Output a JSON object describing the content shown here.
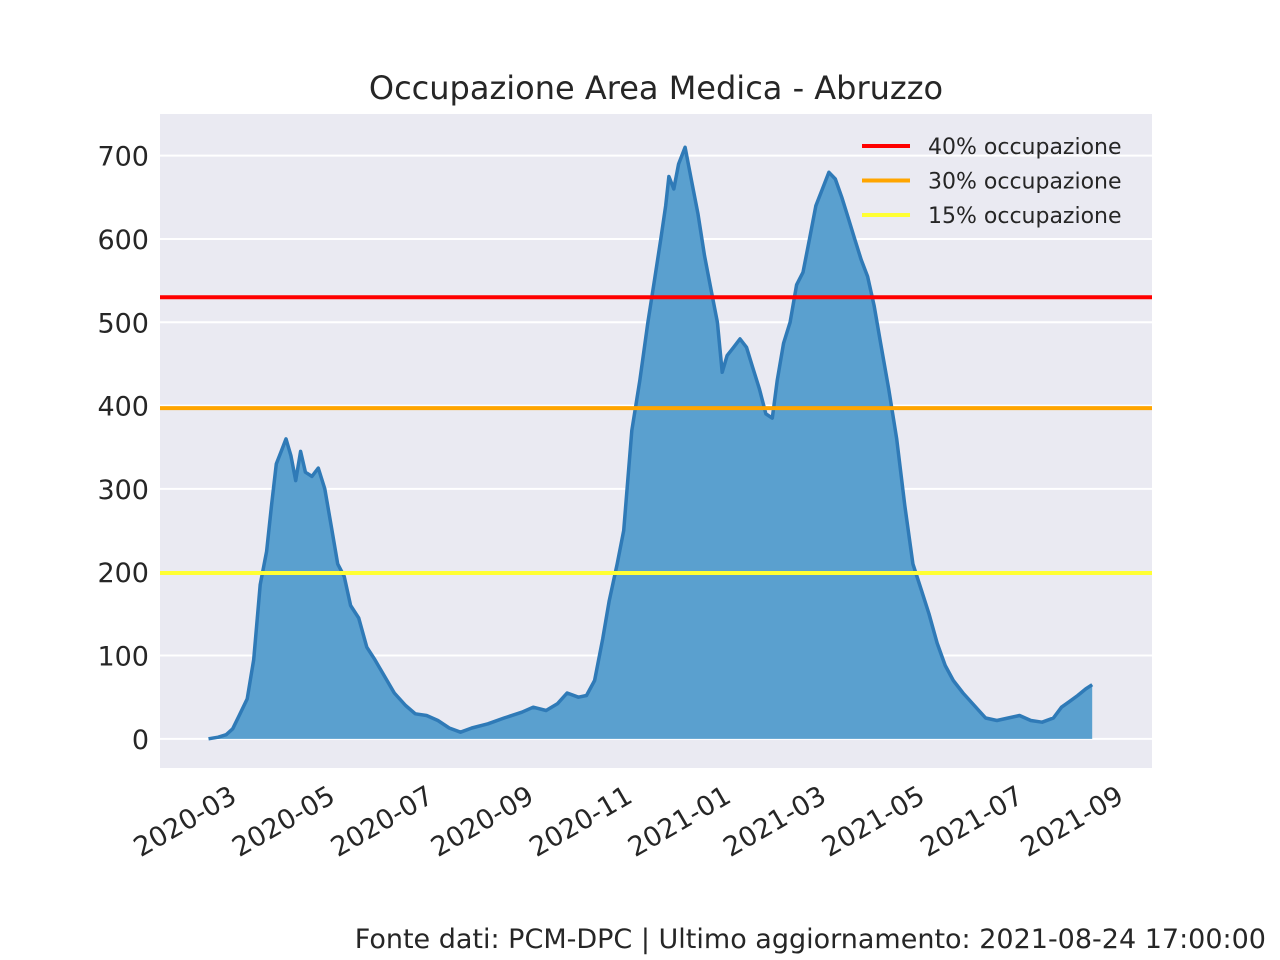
{
  "footer": "Fonte dati: PCM-DPC | Ultimo aggiornamento: 2021-08-24 17:00:00",
  "chart_data": {
    "type": "area",
    "title": "Occupazione Area Medica - Abruzzo",
    "xlabel": "",
    "ylabel": "",
    "xlim": [
      "2020-01-25",
      "2021-09-30"
    ],
    "ylim": [
      -35,
      750
    ],
    "yticks": [
      0,
      100,
      200,
      300,
      400,
      500,
      600,
      700
    ],
    "xticks": [
      "2020-03",
      "2020-05",
      "2020-07",
      "2020-09",
      "2020-11",
      "2021-01",
      "2021-03",
      "2021-05",
      "2021-07",
      "2021-09"
    ],
    "grid": true,
    "legend_position": "top-right",
    "colors": {
      "area": "#5aa0cf",
      "line": "#2f7ab7",
      "background": "#eaeaf2",
      "grid": "#ffffff"
    },
    "series": [
      {
        "type": "area",
        "x": [
          "2020-02-24",
          "2020-03-01",
          "2020-03-06",
          "2020-03-10",
          "2020-03-14",
          "2020-03-19",
          "2020-03-23",
          "2020-03-27",
          "2020-03-31",
          "2020-04-03",
          "2020-04-06",
          "2020-04-09",
          "2020-04-12",
          "2020-04-15",
          "2020-04-18",
          "2020-04-21",
          "2020-04-24",
          "2020-04-28",
          "2020-05-02",
          "2020-05-06",
          "2020-05-10",
          "2020-05-14",
          "2020-05-18",
          "2020-05-22",
          "2020-05-27",
          "2020-06-01",
          "2020-06-06",
          "2020-06-12",
          "2020-06-18",
          "2020-06-25",
          "2020-07-01",
          "2020-07-08",
          "2020-07-15",
          "2020-07-22",
          "2020-07-29",
          "2020-08-05",
          "2020-08-15",
          "2020-08-25",
          "2020-09-05",
          "2020-09-12",
          "2020-09-20",
          "2020-09-27",
          "2020-10-03",
          "2020-10-10",
          "2020-10-15",
          "2020-10-20",
          "2020-10-25",
          "2020-10-29",
          "2020-11-03",
          "2020-11-07",
          "2020-11-12",
          "2020-11-17",
          "2020-11-22",
          "2020-11-26",
          "2020-11-30",
          "2020-12-03",
          "2020-12-05",
          "2020-12-08",
          "2020-12-11",
          "2020-12-15",
          "2020-12-19",
          "2020-12-23",
          "2020-12-27",
          "2020-12-31",
          "2021-01-04",
          "2021-01-07",
          "2021-01-10",
          "2021-01-14",
          "2021-01-18",
          "2021-01-22",
          "2021-01-26",
          "2021-01-30",
          "2021-02-03",
          "2021-02-07",
          "2021-02-10",
          "2021-02-14",
          "2021-02-18",
          "2021-02-22",
          "2021-02-26",
          "2021-03-02",
          "2021-03-06",
          "2021-03-10",
          "2021-03-14",
          "2021-03-18",
          "2021-03-22",
          "2021-03-26",
          "2021-03-30",
          "2021-04-03",
          "2021-04-07",
          "2021-04-11",
          "2021-04-15",
          "2021-04-20",
          "2021-04-25",
          "2021-04-30",
          "2021-05-05",
          "2021-05-10",
          "2021-05-15",
          "2021-05-20",
          "2021-05-25",
          "2021-05-30",
          "2021-06-05",
          "2021-06-12",
          "2021-06-19",
          "2021-06-26",
          "2021-07-03",
          "2021-07-10",
          "2021-07-17",
          "2021-07-24",
          "2021-07-31",
          "2021-08-05",
          "2021-08-10",
          "2021-08-15",
          "2021-08-20",
          "2021-08-24"
        ],
        "values": [
          0,
          2,
          5,
          12,
          28,
          48,
          95,
          185,
          225,
          280,
          330,
          345,
          360,
          340,
          310,
          345,
          320,
          315,
          325,
          300,
          255,
          210,
          195,
          160,
          145,
          110,
          95,
          75,
          55,
          40,
          30,
          28,
          22,
          13,
          8,
          13,
          18,
          25,
          32,
          38,
          34,
          42,
          55,
          50,
          52,
          70,
          120,
          165,
          210,
          250,
          370,
          430,
          500,
          550,
          600,
          640,
          675,
          660,
          690,
          710,
          670,
          630,
          580,
          540,
          500,
          440,
          460,
          470,
          480,
          470,
          445,
          420,
          390,
          385,
          430,
          475,
          500,
          545,
          560,
          600,
          640,
          660,
          680,
          672,
          650,
          625,
          600,
          575,
          555,
          520,
          475,
          420,
          360,
          280,
          210,
          180,
          150,
          115,
          88,
          70,
          55,
          40,
          25,
          22,
          25,
          28,
          22,
          20,
          25,
          38,
          45,
          52,
          60,
          65
        ]
      }
    ],
    "hlines": [
      {
        "name": "40% occupazione",
        "y": 530,
        "color": "#ff0000"
      },
      {
        "name": "30% occupazione",
        "y": 397,
        "color": "#ffa500"
      },
      {
        "name": "15% occupazione",
        "y": 199,
        "color": "#ffff33"
      }
    ]
  }
}
